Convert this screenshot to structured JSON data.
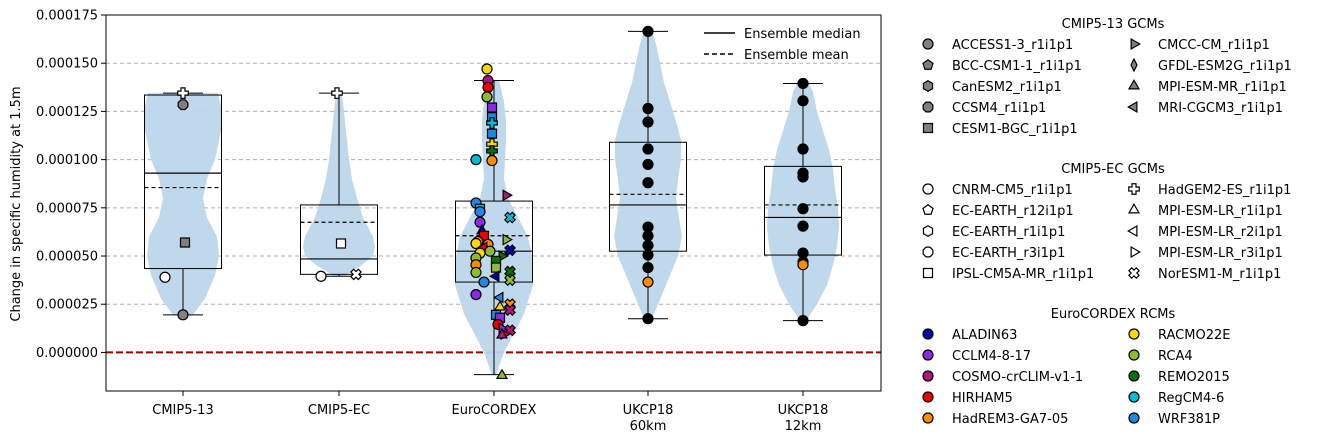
{
  "chart_data": {
    "type": "violin",
    "ylabel": "Change in specific humidity at 1.5m",
    "ylim": [
      -2e-05,
      0.000175
    ],
    "yticks": [
      "0.000000",
      "0.000025",
      "0.000050",
      "0.000075",
      "0.000100",
      "0.000125",
      "0.000150",
      "0.000175"
    ],
    "yticks_values": [
      0,
      2.5e-05,
      5e-05,
      7.5e-05,
      0.0001,
      0.000125,
      0.00015,
      0.000175
    ],
    "grid": "horizontal dashed",
    "zero_line_color": "#a00000",
    "violin_color": "#bcd6ea",
    "box_fill": "#bcd6ea",
    "categories": [
      "CMIP5-13",
      "CMIP5-EC",
      "EuroCORDEX",
      "UKCP18\n60km",
      "UKCP18\n12km"
    ],
    "stats": [
      {
        "category": "CMIP5-13",
        "min": 1.95e-05,
        "q1": 4.35e-05,
        "median": 9.3e-05,
        "mean": 8.55e-05,
        "q3": 0.0001335,
        "max": 0.0001345
      },
      {
        "category": "CMIP5-EC",
        "min": 3.95e-05,
        "q1": 4.05e-05,
        "median": 4.85e-05,
        "mean": 6.75e-05,
        "q3": 7.65e-05,
        "max": 0.0001345
      },
      {
        "category": "EuroCORDEX",
        "min": -1.15e-05,
        "q1": 3.65e-05,
        "median": 5.25e-05,
        "mean": 6.05e-05,
        "q3": 7.85e-05,
        "max": 0.000141
      },
      {
        "category": "UKCP18 60km",
        "min": 1.75e-05,
        "q1": 5.25e-05,
        "median": 7.65e-05,
        "mean": 8.2e-05,
        "q3": 0.000109,
        "max": 0.0001665
      },
      {
        "category": "UKCP18 12km",
        "min": 1.65e-05,
        "q1": 5.05e-05,
        "median": 7e-05,
        "mean": 7.65e-05,
        "q3": 9.65e-05,
        "max": 0.0001395
      }
    ],
    "series": [
      {
        "category": "CMIP5-13",
        "name": "ACCESS1-3_r1i1p1",
        "values": [
          1.95e-05
        ]
      },
      {
        "category": "CMIP5-13",
        "name": "CCSM4_r1i1p1",
        "values": [
          0.0001285
        ]
      },
      {
        "category": "CMIP5-13",
        "name": "CESM1-BGC_r1i1p1",
        "values": [
          5.7e-05
        ]
      },
      {
        "category": "CMIP5-13",
        "name": "CNRM-CM5_r1i1p1",
        "values": [
          3.9e-05
        ]
      },
      {
        "category": "CMIP5-13",
        "name": "HadGEM2-ES_r1i1p1",
        "values": [
          0.0001345
        ]
      },
      {
        "category": "CMIP5-EC",
        "name": "CNRM-CM5_r1i1p1",
        "values": [
          3.95e-05
        ]
      },
      {
        "category": "CMIP5-EC",
        "name": "NorESM1-M_r1i1p1",
        "values": [
          4.05e-05
        ]
      },
      {
        "category": "CMIP5-EC",
        "name": "IPSL-CM5A-MR_r1i1p1",
        "values": [
          5.65e-05
        ]
      },
      {
        "category": "CMIP5-EC",
        "name": "HadGEM2-ES_r1i1p1",
        "values": [
          0.0001345
        ]
      },
      {
        "category": "UKCP18 60km",
        "name": "Ensemble",
        "values": [
          0.0001665,
          0.0001265,
          0.0001195,
          0.0001055,
          9.75e-05,
          8.8e-05,
          6.5e-05,
          6.05e-05,
          5.55e-05,
          5.05e-05,
          4.4e-05,
          1.75e-05
        ]
      },
      {
        "category": "UKCP18 60km",
        "name": "HadREM3-GA7-05",
        "values": [
          3.65e-05
        ]
      },
      {
        "category": "UKCP18 12km",
        "name": "Ensemble",
        "values": [
          0.0001395,
          0.0001305,
          0.0001055,
          9.3e-05,
          9.1e-05,
          7.45e-05,
          6.55e-05,
          5.15e-05,
          4.7e-05,
          1.65e-05
        ]
      },
      {
        "category": "UKCP18 12km",
        "name": "HadREM3-GA7-05",
        "values": [
          4.55e-05
        ]
      },
      {
        "category": "EuroCORDEX",
        "name": "EuroCORDEX RCMs",
        "values": [
          0.000147,
          0.000141,
          0.0001375,
          0.0001325,
          0.000127,
          0.000122,
          0.000119,
          0.0001135,
          0.000108,
          0.0001045,
          0.0001,
          9.95e-05,
          8.15e-05,
          7.75e-05,
          7.45e-05,
          7.3e-05,
          7e-05,
          6.75e-05,
          6.3e-05,
          6.05e-05,
          5.85e-05,
          5.75e-05,
          5.65e-05,
          5.6e-05,
          5.45e-05,
          5.3e-05,
          5.25e-05,
          5.15e-05,
          5e-05,
          4.9e-05,
          4.75e-05,
          4.55e-05,
          4.4e-05,
          4.2e-05,
          4.15e-05,
          3.95e-05,
          3.75e-05,
          3.65e-05,
          3e-05,
          2.85e-05,
          2.5e-05,
          2.35e-05,
          2.2e-05,
          1.95e-05,
          1.8e-05,
          1.45e-05,
          1.25e-05,
          1.15e-05,
          9.5e-06,
          9e-06,
          -1.2e-05
        ]
      }
    ]
  },
  "legend_top": {
    "entries": [
      {
        "label": "Ensemble median",
        "style": "solid"
      },
      {
        "label": "Ensemble mean",
        "style": "dashed"
      }
    ]
  },
  "legend_groups": [
    {
      "title": "CMIP5-13 GCMs",
      "items": [
        {
          "label": "ACCESS1-3_r1i1p1",
          "marker": "circle",
          "color": "#808080"
        },
        {
          "label": "BCC-CSM1-1_r1i1p1",
          "marker": "pentagon",
          "color": "#808080"
        },
        {
          "label": "CanESM2_r1i1p1",
          "marker": "hexagon",
          "color": "#808080"
        },
        {
          "label": "CCSM4_r1i1p1",
          "marker": "octagon",
          "color": "#808080"
        },
        {
          "label": "CESM1-BGC_r1i1p1",
          "marker": "square",
          "color": "#808080"
        },
        {
          "label": "CMCC-CM_r1i1p1",
          "marker": "triangle-right",
          "color": "#808080"
        },
        {
          "label": "GFDL-ESM2G_r1i1p1",
          "marker": "thin-diamond",
          "color": "#808080"
        },
        {
          "label": "MPI-ESM-MR_r1i1p1",
          "marker": "triangle-up",
          "color": "#808080"
        },
        {
          "label": "MRI-CGCM3_r1i1p1",
          "marker": "triangle-left",
          "color": "#808080"
        }
      ]
    },
    {
      "title": "CMIP5-EC GCMs",
      "items": [
        {
          "label": "CNRM-CM5_r1i1p1",
          "marker": "circle",
          "color": "#ffffff"
        },
        {
          "label": "EC-EARTH_r12i1p1",
          "marker": "pentagon",
          "color": "#ffffff"
        },
        {
          "label": "EC-EARTH_r1i1p1",
          "marker": "hexagon",
          "color": "#ffffff"
        },
        {
          "label": "EC-EARTH_r3i1p1",
          "marker": "octagon",
          "color": "#ffffff"
        },
        {
          "label": "IPSL-CM5A-MR_r1i1p1",
          "marker": "square",
          "color": "#ffffff"
        },
        {
          "label": "HadGEM2-ES_r1i1p1",
          "marker": "plus",
          "color": "#ffffff"
        },
        {
          "label": "MPI-ESM-LR_r1i1p1",
          "marker": "triangle-up",
          "color": "#ffffff"
        },
        {
          "label": "MPI-ESM-LR_r2i1p1",
          "marker": "triangle-left",
          "color": "#ffffff"
        },
        {
          "label": "MPI-ESM-LR_r3i1p1",
          "marker": "triangle-right",
          "color": "#ffffff"
        },
        {
          "label": "NorESM1-M_r1i1p1",
          "marker": "x",
          "color": "#ffffff"
        }
      ]
    },
    {
      "title": "EuroCORDEX RCMs",
      "items": [
        {
          "label": "ALADIN63",
          "marker": "circle",
          "color": "#0000aa"
        },
        {
          "label": "CCLM4-8-17",
          "marker": "circle",
          "color": "#8a2be2"
        },
        {
          "label": "COSMO-crCLIM-v1-1",
          "marker": "circle",
          "color": "#b0157a"
        },
        {
          "label": "HIRHAM5",
          "marker": "circle",
          "color": "#ee0000"
        },
        {
          "label": "HadREM3-GA7-05",
          "marker": "circle",
          "color": "#ff8c00"
        },
        {
          "label": "RACMO22E",
          "marker": "circle",
          "color": "#ffd700"
        },
        {
          "label": "RCA4",
          "marker": "circle",
          "color": "#8fbc2f"
        },
        {
          "label": "REMO2015",
          "marker": "circle",
          "color": "#0a6e0a"
        },
        {
          "label": "RegCM4-6",
          "marker": "circle",
          "color": "#00bcd4"
        },
        {
          "label": "WRF381P",
          "marker": "circle",
          "color": "#1e88e5"
        }
      ]
    }
  ]
}
